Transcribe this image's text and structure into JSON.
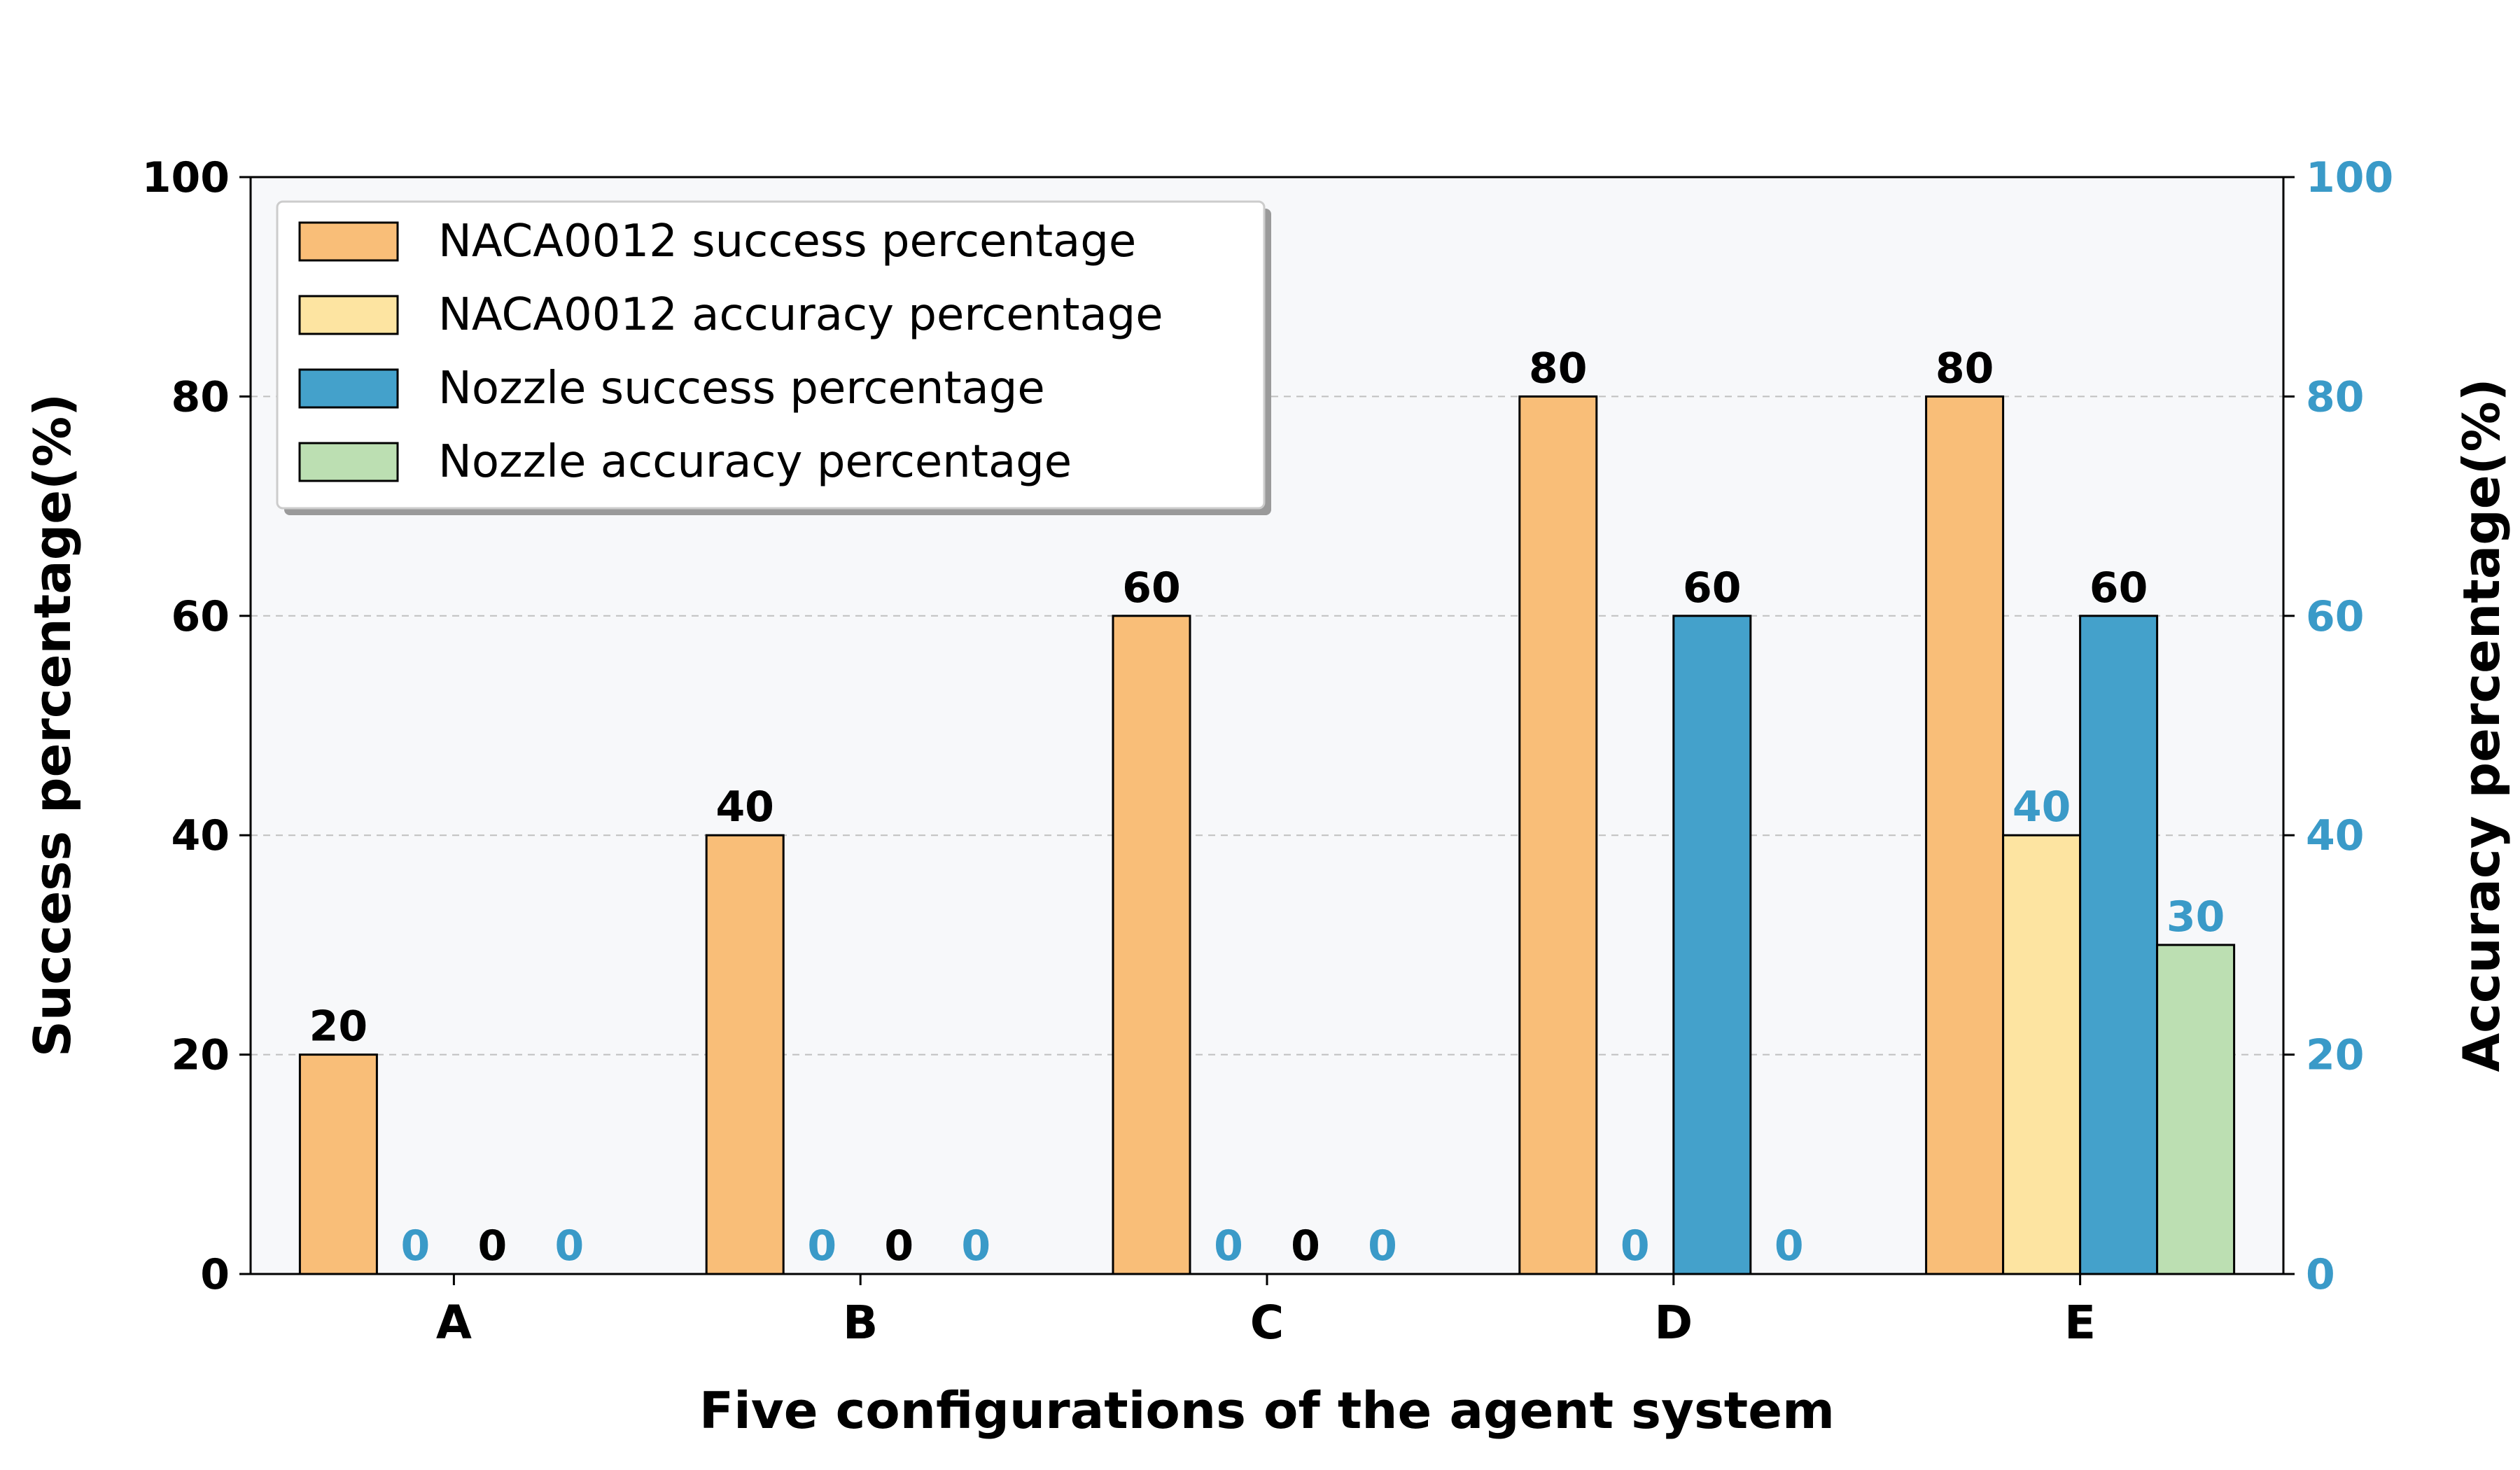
{
  "chart_data": {
    "type": "bar",
    "title": "",
    "xlabel": "Five configurations of the agent system",
    "ylabel": "Success percentage(%)",
    "ylabel_right": "Accuracy percentage(%)",
    "categories": [
      "A",
      "B",
      "C",
      "D",
      "E"
    ],
    "ylim": [
      0,
      100
    ],
    "ylim_right": [
      0,
      100
    ],
    "yticks": [
      0,
      20,
      40,
      60,
      80,
      100
    ],
    "grid": "horizontal dashed",
    "legend_position": "top-left",
    "series": [
      {
        "name": "NACA0012 success percentage",
        "axis": "left",
        "color": "#f9be78",
        "label_color": "#000000",
        "values": [
          20,
          40,
          60,
          80,
          80
        ],
        "value_labels": [
          "20",
          "40",
          "60",
          "80",
          "80"
        ]
      },
      {
        "name": "NACA0012 accuracy percentage",
        "axis": "right",
        "color": "#fde4a1",
        "label_color": "#3a9ac8",
        "values": [
          0,
          0,
          0,
          0,
          40
        ],
        "value_labels": [
          "0",
          "0",
          "0",
          "0",
          "40"
        ]
      },
      {
        "name": "Nozzle success percentage",
        "axis": "left",
        "color": "#44a1cb",
        "label_color": "#000000",
        "values": [
          0,
          0,
          0,
          60,
          60
        ],
        "value_labels": [
          "0",
          "0",
          "0",
          "60",
          "60"
        ]
      },
      {
        "name": "Nozzle accuracy percentage",
        "axis": "right",
        "color": "#bcdfb2",
        "label_color": "#3a9ac8",
        "values": [
          0,
          0,
          0,
          0,
          30
        ],
        "value_labels": [
          "0",
          "0",
          "0",
          "0",
          "30"
        ]
      }
    ],
    "colors": {
      "plot_background": "#f7f8fa",
      "right_axis": "#3a9ac8",
      "grid": "#c0c0c0"
    }
  }
}
